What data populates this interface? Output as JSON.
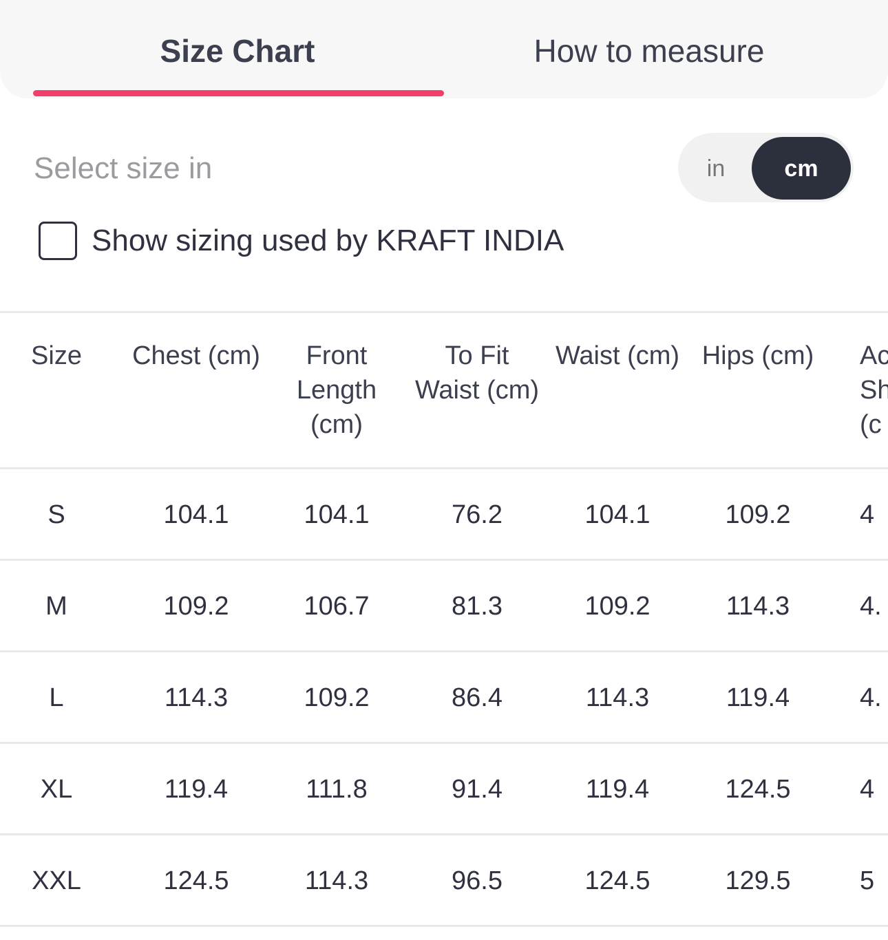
{
  "tabs": [
    "Size Chart",
    "How to measure"
  ],
  "unit_prompt": "Select size in",
  "units": [
    "in",
    "cm"
  ],
  "checkbox_label": "Show  sizing used by KRAFT INDIA",
  "table": {
    "headers": [
      [
        "Size"
      ],
      [
        "Chest (cm)"
      ],
      [
        "Front",
        "Length",
        "(cm)"
      ],
      [
        "To Fit",
        "Waist (cm)"
      ],
      [
        "Waist (cm)"
      ],
      [
        "Hips (cm)"
      ],
      [
        "Ac",
        "Sho",
        "(c"
      ]
    ],
    "rows": [
      [
        "S",
        "104.1",
        "104.1",
        "76.2",
        "104.1",
        "109.2",
        "4"
      ],
      [
        "M",
        "109.2",
        "106.7",
        "81.3",
        "109.2",
        "114.3",
        "4."
      ],
      [
        "L",
        "114.3",
        "109.2",
        "86.4",
        "114.3",
        "119.4",
        "4."
      ],
      [
        "XL",
        "119.4",
        "111.8",
        "91.4",
        "119.4",
        "124.5",
        "4"
      ],
      [
        "XXL",
        "124.5",
        "114.3",
        "96.5",
        "124.5",
        "129.5",
        "5"
      ]
    ]
  }
}
